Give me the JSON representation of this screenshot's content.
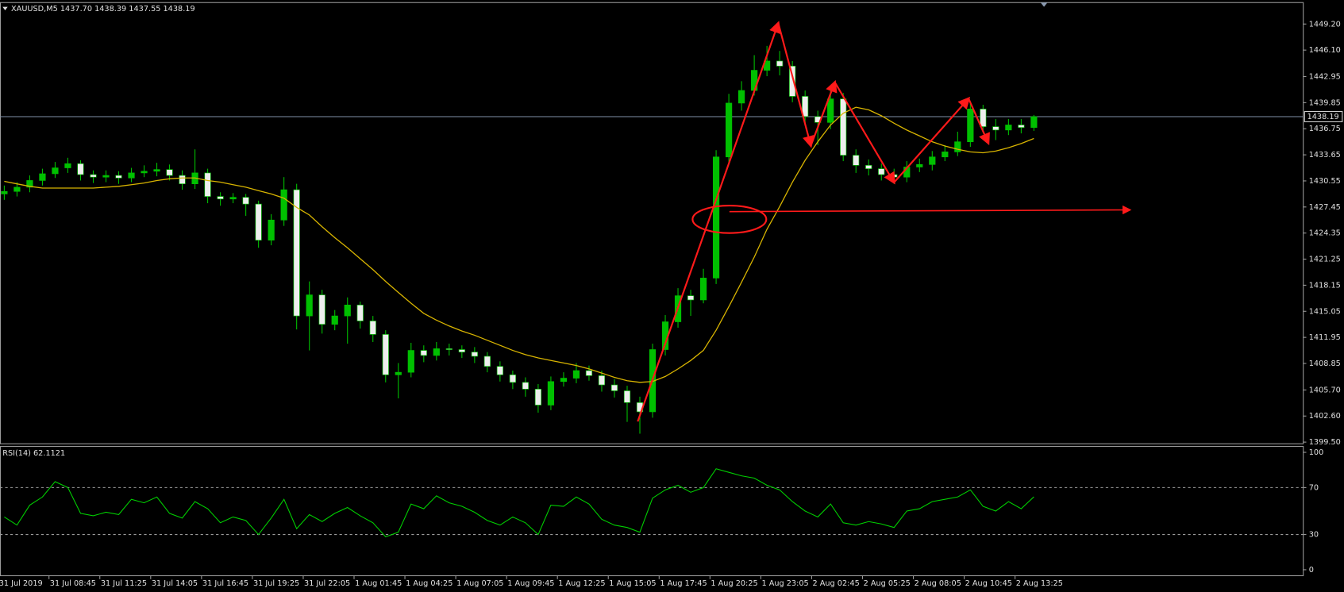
{
  "chart_data": [
    {
      "type": "candlestick",
      "title": "XAUUSD,M5  1437.70 1438.39 1437.55 1438.19",
      "categories": [
        null,
        "31 Jul 2019",
        null,
        null,
        null,
        "31 Jul 08:45",
        null,
        null,
        null,
        "31 Jul 11:25",
        null,
        null,
        null,
        "31 Jul 14:05",
        null,
        null,
        null,
        "31 Jul 16:45",
        null,
        null,
        null,
        "31 Jul 19:25",
        null,
        null,
        null,
        "31 Jul 22:05",
        null,
        null,
        null,
        "1 Aug 01:45",
        null,
        null,
        null,
        "1 Aug 04:25",
        null,
        null,
        null,
        "1 Aug 07:05",
        null,
        null,
        null,
        "1 Aug 09:45",
        null,
        null,
        null,
        "1 Aug 12:25",
        null,
        null,
        null,
        "1 Aug 15:05",
        null,
        null,
        null,
        "1 Aug 17:45",
        null,
        null,
        null,
        "1 Aug 20:25",
        null,
        null,
        null,
        "1 Aug 23:05",
        null,
        null,
        null,
        "2 Aug 02:45",
        null,
        null,
        null,
        "2 Aug 05:25",
        null,
        null,
        null,
        "2 Aug 08:05",
        null,
        null,
        null,
        "2 Aug 10:45",
        null,
        null,
        null,
        "2 Aug 13:25"
      ],
      "open": [
        1429.0,
        1429.3,
        1429.8,
        1430.6,
        1431.4,
        1432.1,
        1432.6,
        1431.3,
        1431.0,
        1431.2,
        1430.9,
        1431.5,
        1431.7,
        1431.9,
        1431.2,
        1430.2,
        1431.5,
        1428.7,
        1428.4,
        1428.6,
        1427.8,
        1423.5,
        1425.9,
        1429.5,
        1414.5,
        1417.0,
        1413.5,
        1414.5,
        1415.8,
        1413.9,
        1412.3,
        1407.5,
        1407.8,
        1410.4,
        1409.8,
        1410.6,
        1410.5,
        1410.2,
        1409.7,
        1408.5,
        1407.5,
        1406.6,
        1405.8,
        1403.9,
        1406.7,
        1407.1,
        1408.0,
        1407.4,
        1406.3,
        1405.6,
        1404.2,
        1403.1,
        1410.5,
        1413.8,
        1416.9,
        1416.4,
        1419.0,
        1433.4,
        1439.8,
        1441.3,
        1443.7,
        1444.8,
        1444.2,
        1440.6,
        1438.2,
        1437.5,
        1440.3,
        1433.6,
        1432.4,
        1432.0,
        1431.3,
        1431.0,
        1432.2,
        1432.5,
        1433.4,
        1434.0,
        1435.2,
        1439.1,
        1437.0,
        1436.6,
        1437.2,
        1436.9
      ],
      "high": [
        1430.0,
        1430.4,
        1431.2,
        1432.0,
        1432.8,
        1433.3,
        1433.0,
        1431.8,
        1431.8,
        1431.7,
        1432.1,
        1432.4,
        1432.7,
        1432.5,
        1431.8,
        1434.3,
        1432.0,
        1429.2,
        1429.1,
        1429.0,
        1428.2,
        1426.6,
        1431.0,
        1430.2,
        1418.6,
        1417.6,
        1415.2,
        1416.7,
        1416.2,
        1414.5,
        1412.8,
        1408.9,
        1411.3,
        1411.0,
        1411.4,
        1411.2,
        1411.0,
        1410.8,
        1410.2,
        1409.1,
        1408.0,
        1407.2,
        1406.4,
        1407.3,
        1407.8,
        1408.9,
        1408.6,
        1408.0,
        1407.0,
        1406.2,
        1404.9,
        1411.2,
        1414.6,
        1417.8,
        1417.6,
        1420.1,
        1434.2,
        1440.9,
        1442.4,
        1445.5,
        1446.6,
        1446.0,
        1444.8,
        1441.3,
        1438.9,
        1441.8,
        1441.0,
        1434.3,
        1433.1,
        1432.6,
        1432.0,
        1432.9,
        1433.2,
        1434.1,
        1434.8,
        1436.4,
        1439.9,
        1439.6,
        1437.9,
        1437.9,
        1437.9,
        1438.39
      ],
      "low": [
        1428.3,
        1428.7,
        1429.2,
        1430.0,
        1430.9,
        1431.5,
        1430.6,
        1430.3,
        1430.4,
        1430.2,
        1430.4,
        1431.0,
        1431.1,
        1430.6,
        1429.5,
        1429.6,
        1427.9,
        1427.6,
        1427.9,
        1426.4,
        1422.6,
        1422.9,
        1425.2,
        1412.9,
        1410.4,
        1412.4,
        1412.8,
        1411.2,
        1413.0,
        1411.4,
        1406.6,
        1404.7,
        1407.2,
        1409.0,
        1409.2,
        1409.8,
        1409.5,
        1408.9,
        1407.8,
        1406.7,
        1405.8,
        1404.9,
        1403.0,
        1403.3,
        1406.1,
        1406.5,
        1406.8,
        1405.5,
        1404.8,
        1401.9,
        1400.5,
        1402.4,
        1409.8,
        1413.1,
        1414.5,
        1416.0,
        1418.3,
        1432.7,
        1438.9,
        1440.7,
        1443.0,
        1443.1,
        1439.9,
        1437.3,
        1434.8,
        1436.7,
        1432.9,
        1431.5,
        1431.2,
        1430.6,
        1430.2,
        1430.4,
        1431.6,
        1431.8,
        1432.9,
        1433.5,
        1434.6,
        1436.3,
        1435.4,
        1436.0,
        1436.2,
        1436.5
      ],
      "close": [
        1429.3,
        1429.8,
        1430.6,
        1431.4,
        1432.1,
        1432.6,
        1431.3,
        1431.0,
        1431.2,
        1430.9,
        1431.5,
        1431.7,
        1431.9,
        1431.2,
        1430.2,
        1431.5,
        1428.7,
        1428.4,
        1428.6,
        1427.8,
        1423.5,
        1425.9,
        1429.5,
        1414.5,
        1417.0,
        1413.5,
        1414.5,
        1415.8,
        1413.9,
        1412.3,
        1407.5,
        1407.8,
        1410.4,
        1409.8,
        1410.6,
        1410.5,
        1410.2,
        1409.7,
        1408.5,
        1407.5,
        1406.6,
        1405.8,
        1403.9,
        1406.7,
        1407.1,
        1408.0,
        1407.4,
        1406.3,
        1405.6,
        1404.2,
        1403.1,
        1410.5,
        1413.8,
        1416.9,
        1416.4,
        1419.0,
        1433.4,
        1439.8,
        1441.3,
        1443.7,
        1444.8,
        1444.2,
        1440.6,
        1438.2,
        1437.5,
        1440.3,
        1433.6,
        1432.4,
        1432.0,
        1431.3,
        1431.0,
        1432.2,
        1432.5,
        1433.4,
        1434.0,
        1435.2,
        1439.1,
        1437.0,
        1436.6,
        1437.2,
        1436.9,
        1438.19
      ],
      "up_color": "#00c000",
      "down_color": "#eeeeee",
      "wick_color": "#00c000",
      "ma": {
        "color": "#d8b400",
        "values": [
          1430.5,
          1430.2,
          1429.9,
          1429.7,
          1429.7,
          1429.7,
          1429.7,
          1429.7,
          1429.8,
          1429.9,
          1430.1,
          1430.3,
          1430.6,
          1430.8,
          1430.9,
          1430.9,
          1430.6,
          1430.4,
          1430.1,
          1429.8,
          1429.4,
          1429.0,
          1428.5,
          1427.4,
          1426.5,
          1425.1,
          1423.8,
          1422.6,
          1421.3,
          1420.0,
          1418.6,
          1417.3,
          1416.0,
          1414.8,
          1414.0,
          1413.3,
          1412.7,
          1412.2,
          1411.6,
          1411.0,
          1410.4,
          1409.9,
          1409.5,
          1409.2,
          1408.9,
          1408.6,
          1408.2,
          1407.7,
          1407.2,
          1406.8,
          1406.6,
          1406.7,
          1407.3,
          1408.2,
          1409.2,
          1410.4,
          1412.8,
          1415.6,
          1418.5,
          1421.5,
          1424.8,
          1427.5,
          1430.4,
          1433.0,
          1435.2,
          1437.2,
          1438.6,
          1439.3,
          1439.0,
          1438.3,
          1437.4,
          1436.6,
          1435.9,
          1435.2,
          1434.7,
          1434.3,
          1434.0,
          1433.9,
          1434.1,
          1434.5,
          1435.0,
          1435.6
        ]
      },
      "current_price": {
        "value": 1438.19,
        "label": "1438.19"
      },
      "ylim": [
        1399.3,
        1451.75
      ],
      "yticks": [
        {
          "value": 1449.2,
          "label": "1449.20"
        },
        {
          "value": 1446.1,
          "label": "1446.10"
        },
        1442.95,
        1439.85,
        1436.75,
        1433.65,
        1430.55,
        1427.45,
        1424.35,
        1421.25,
        1418.15,
        1415.05,
        1411.95,
        1408.85,
        {
          "value": 1405.7,
          "label": "1405.70"
        },
        {
          "value": 1402.6,
          "label": "1402.60"
        },
        {
          "value": 1399.5,
          "label": "1399.50"
        }
      ]
    },
    {
      "type": "line",
      "title": "RSI(14) 62.1121",
      "color": "#00d000",
      "values": [
        45,
        38,
        55,
        62,
        75,
        70,
        48,
        46,
        49,
        47,
        60,
        57,
        62,
        48,
        44,
        58,
        52,
        40,
        45,
        42,
        30,
        44,
        60,
        35,
        47,
        41,
        48,
        53,
        46,
        40,
        28,
        32,
        56,
        52,
        63,
        57,
        54,
        49,
        42,
        38,
        45,
        40,
        30,
        55,
        54,
        62,
        56,
        43,
        38,
        36,
        32,
        61,
        68,
        72,
        66,
        70,
        86,
        83,
        80,
        78,
        72,
        68,
        58,
        50,
        45,
        56,
        40,
        38,
        41,
        39,
        36,
        50,
        52,
        58,
        60,
        62,
        68,
        54,
        50,
        58,
        52,
        62.1121
      ],
      "ylim": [
        -5.1,
        105.1
      ],
      "yticks": [
        100,
        70,
        30,
        0
      ],
      "levels": [
        70,
        30
      ]
    }
  ]
}
